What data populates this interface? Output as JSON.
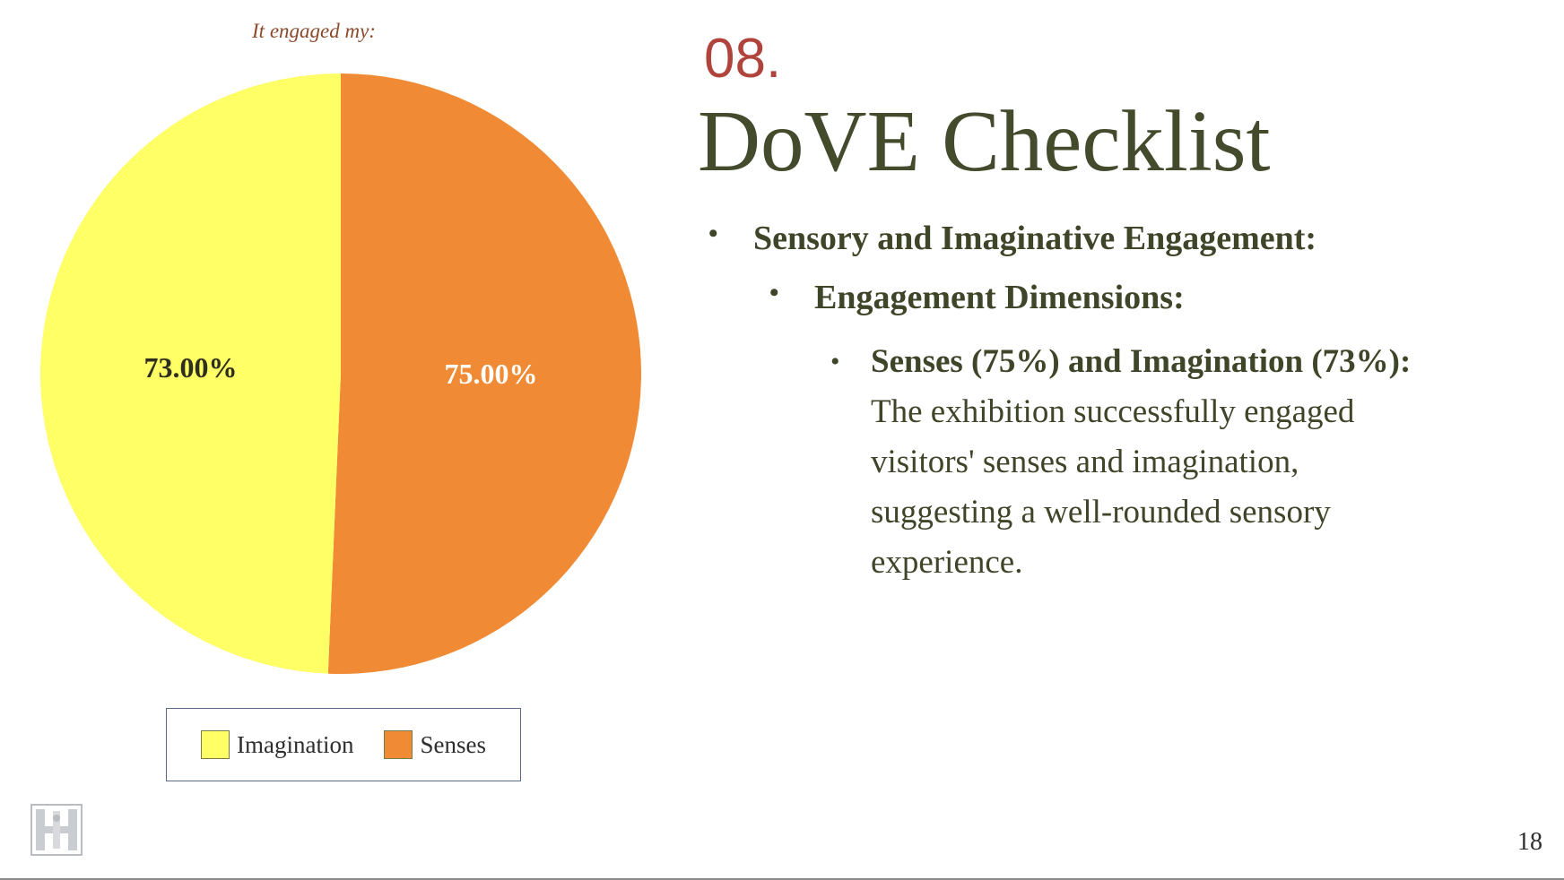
{
  "slide": {
    "section_number": "08.",
    "title": "DoVE Checklist",
    "page_number": "18"
  },
  "bullets": {
    "level1": "Sensory and Imaginative Engagement:",
    "level2": "Engagement Dimensions:",
    "level3_lead": "Senses (75%) and Imagination (73%):",
    "level3_body": "The exhibition successfully engaged visitors' senses and imagination, suggesting a well-rounded sensory experience."
  },
  "logo": {
    "icon": "institution-crest-icon"
  },
  "chart_data": {
    "type": "pie",
    "title": "It engaged my:",
    "categories": [
      "Imagination",
      "Senses"
    ],
    "values": [
      73.0,
      75.0
    ],
    "data_labels": [
      "73.00%",
      "75.00%"
    ],
    "colors": [
      "#ffff66",
      "#f08a34"
    ],
    "label_colors": [
      "#2e2e1e",
      "#ffffff"
    ],
    "legend": {
      "position": "bottom",
      "items": [
        "Imagination",
        "Senses"
      ]
    }
  }
}
